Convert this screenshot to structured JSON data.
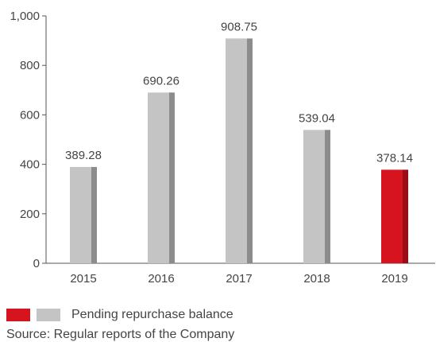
{
  "chart_data": {
    "type": "bar",
    "categories": [
      "2015",
      "2016",
      "2017",
      "2018",
      "2019"
    ],
    "values": [
      389.28,
      690.26,
      908.75,
      539.04,
      378.14
    ],
    "value_labels": [
      "389.28",
      "690.26",
      "908.75",
      "539.04",
      "378.14"
    ],
    "y_ticks": [
      0,
      200,
      400,
      600,
      800,
      1000
    ],
    "y_tick_labels": [
      "0",
      "200",
      "400",
      "600",
      "800",
      "1,000"
    ],
    "ylim": [
      0,
      1000
    ],
    "title": "",
    "xlabel": "",
    "ylabel": "",
    "highlight_index": 4,
    "grid": false,
    "legend_position": "bottom-left",
    "colors": {
      "bar": "#c4c4c4",
      "bar_side": "#8c8c8c",
      "highlight": "#d6141f",
      "highlight_side": "#9a0d14",
      "axis": "#555555"
    }
  },
  "legend": {
    "label": "Pending repurchase balance",
    "swatch_colors": [
      "#d6141f",
      "#c4c4c4"
    ]
  },
  "source_note": "Source: Regular reports of the Company"
}
